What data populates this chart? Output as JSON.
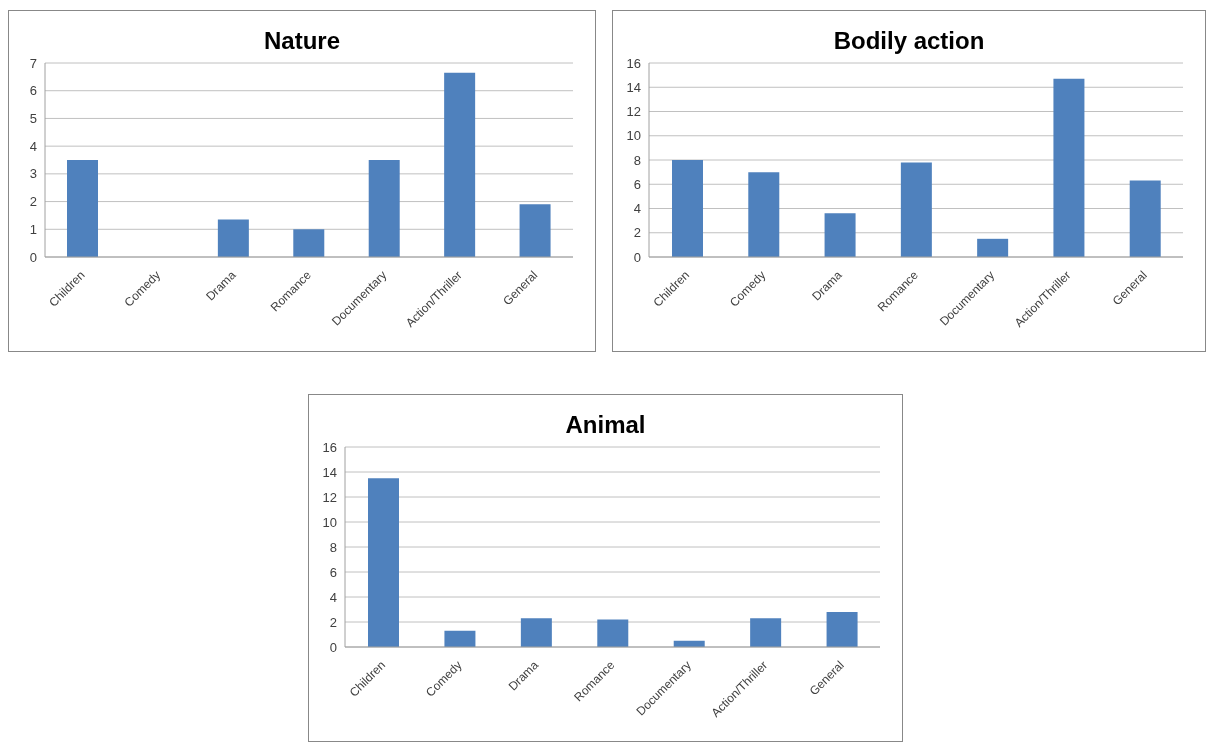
{
  "chart_data": [
    {
      "type": "bar",
      "title": "Nature",
      "categories": [
        "Children",
        "Comedy",
        "Drama",
        "Romance",
        "Documentary",
        "Action/Thriller",
        "General"
      ],
      "values": [
        3.5,
        0,
        1.35,
        1.0,
        3.5,
        6.65,
        1.9
      ],
      "color": "#4f81bd",
      "ylim": [
        0,
        7
      ],
      "yticks": [
        0,
        1,
        2,
        3,
        4,
        5,
        6,
        7
      ],
      "grid": "y"
    },
    {
      "type": "bar",
      "title": "Bodily action",
      "categories": [
        "Children",
        "Comedy",
        "Drama",
        "Romance",
        "Documentary",
        "Action/Thriller",
        "General"
      ],
      "values": [
        8.0,
        7.0,
        3.6,
        7.8,
        1.5,
        14.7,
        6.3
      ],
      "color": "#4f81bd",
      "ylim": [
        0,
        16
      ],
      "yticks": [
        0,
        2,
        4,
        6,
        8,
        10,
        12,
        14,
        16
      ],
      "grid": "y"
    },
    {
      "type": "bar",
      "title": "Animal",
      "categories": [
        "Children",
        "Comedy",
        "Drama",
        "Romance",
        "Documentary",
        "Action/Thriller",
        "General"
      ],
      "values": [
        13.5,
        1.3,
        2.3,
        2.2,
        0.5,
        2.3,
        2.8
      ],
      "color": "#4f81bd",
      "ylim": [
        0,
        16
      ],
      "yticks": [
        0,
        2,
        4,
        6,
        8,
        10,
        12,
        14,
        16
      ],
      "grid": "y"
    }
  ]
}
